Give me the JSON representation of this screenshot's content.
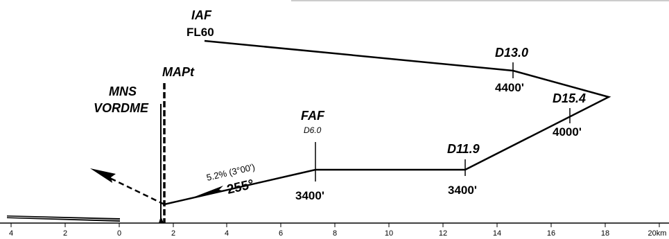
{
  "points": {
    "iaf": {
      "name": "IAF",
      "level": "FL60"
    },
    "d13": {
      "name": "D13.0",
      "alt": "4400'"
    },
    "d154": {
      "name": "D15.4",
      "alt": "4000'"
    },
    "faf": {
      "name": "FAF",
      "dist": "D6.0",
      "alt": "3400'"
    },
    "d119": {
      "name": "D11.9",
      "alt": "3400'"
    },
    "mapt": {
      "name": "MAPt"
    },
    "vor": {
      "name_line1": "MNS",
      "name_line2": "VORDME"
    }
  },
  "approach": {
    "gradient": "5.2% (3°00')",
    "course": "255°"
  },
  "axis": {
    "ticks": [
      "4",
      "2",
      "0",
      "2",
      "4",
      "6",
      "8",
      "10",
      "12",
      "14",
      "16",
      "18",
      "20km"
    ]
  }
}
